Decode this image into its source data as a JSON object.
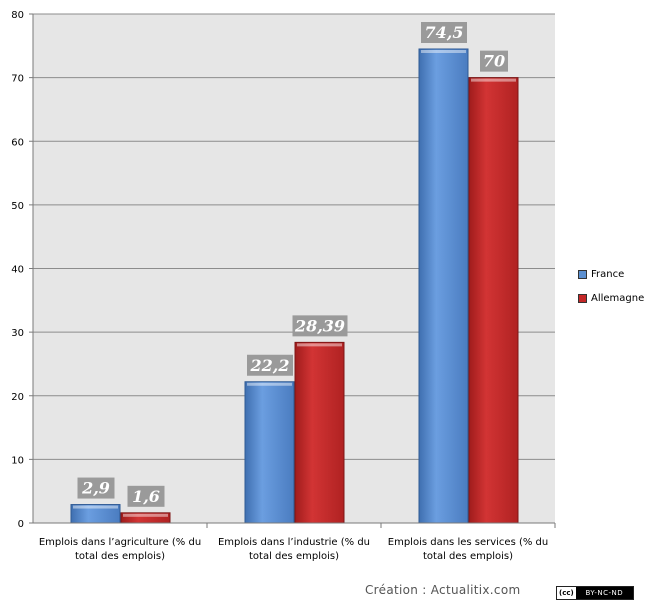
{
  "chart_data": {
    "type": "bar",
    "categories": [
      [
        "Emplois dans l’agriculture (% du",
        "total des emplois)"
      ],
      [
        "Emplois dans l’industrie (% du",
        "total des emplois)"
      ],
      [
        "Emplois dans les services (% du",
        "total des emplois)"
      ]
    ],
    "series": [
      {
        "name": "France",
        "values": [
          2.9,
          22.2,
          74.5
        ],
        "labels": [
          "2,9",
          "22,2",
          "74,5"
        ],
        "color": "#5b8fd0"
      },
      {
        "name": "Allemagne",
        "values": [
          1.6,
          28.39,
          70
        ],
        "labels": [
          "1,6",
          "28,39",
          "70"
        ],
        "color": "#c42727"
      }
    ],
    "ylim": [
      0,
      80
    ],
    "yticks": [
      0,
      10,
      20,
      30,
      40,
      50,
      60,
      70,
      80
    ],
    "grid": true,
    "legend_position": "right",
    "plot_background": "#e6e6e6",
    "gridline_color": "#8c8c8c"
  },
  "footer": {
    "credit": "Création : Actualitix.com",
    "license_cc": "(cc)",
    "license_terms": "BY-NC-ND"
  }
}
